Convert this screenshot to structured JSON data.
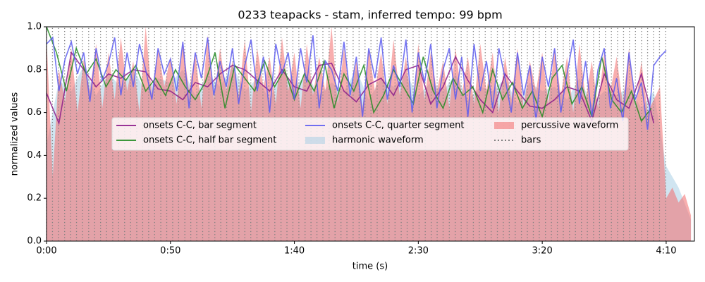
{
  "chart_data": {
    "type": "line",
    "title": "0233 teapacks - stam, inferred tempo: 99 bpm",
    "xlabel": "time (s)",
    "ylabel": "normalized values",
    "xlim": [
      0,
      261.4
    ],
    "ylim": [
      0,
      1
    ],
    "xticks": [
      {
        "value": 0,
        "label": "0:00"
      },
      {
        "value": 50,
        "label": "0:50"
      },
      {
        "value": 100,
        "label": "1:40"
      },
      {
        "value": 150,
        "label": "2:30"
      },
      {
        "value": 200,
        "label": "3:20"
      },
      {
        "value": 250,
        "label": "4:10"
      }
    ],
    "yticks": [
      {
        "value": 0,
        "label": "0.0"
      },
      {
        "value": 0.2,
        "label": "0.2"
      },
      {
        "value": 0.4,
        "label": "0.4"
      },
      {
        "value": 0.6,
        "label": "0.6"
      },
      {
        "value": 0.8,
        "label": "0.8"
      },
      {
        "value": 1,
        "label": "1.0"
      }
    ],
    "series": [
      {
        "name": "onsets C-C, bar segment",
        "type": "line",
        "color": "#8b1a89",
        "x": [
          0,
          5,
          10,
          15,
          20,
          25,
          30,
          35,
          40,
          45,
          50,
          55,
          60,
          65,
          70,
          75,
          80,
          85,
          90,
          95,
          100,
          105,
          110,
          115,
          120,
          125,
          130,
          135,
          140,
          145,
          150,
          155,
          160,
          165,
          170,
          175,
          180,
          185,
          190,
          195,
          200,
          205,
          210,
          215,
          220,
          225,
          230,
          235,
          240,
          245
        ],
        "values": [
          0.69,
          0.55,
          0.88,
          0.8,
          0.72,
          0.78,
          0.76,
          0.8,
          0.79,
          0.71,
          0.7,
          0.66,
          0.74,
          0.72,
          0.78,
          0.82,
          0.8,
          0.75,
          0.7,
          0.8,
          0.72,
          0.7,
          0.82,
          0.83,
          0.7,
          0.65,
          0.73,
          0.76,
          0.68,
          0.8,
          0.82,
          0.64,
          0.72,
          0.86,
          0.75,
          0.66,
          0.6,
          0.78,
          0.7,
          0.63,
          0.62,
          0.66,
          0.72,
          0.7,
          0.56,
          0.78,
          0.66,
          0.62,
          0.78,
          0.55
        ]
      },
      {
        "name": "onsets C-C, half bar segment",
        "type": "line",
        "color": "#228b22",
        "x": [
          0,
          4,
          8,
          12,
          16,
          20,
          24,
          28,
          32,
          36,
          40,
          44,
          48,
          52,
          56,
          60,
          64,
          68,
          72,
          76,
          80,
          84,
          88,
          92,
          96,
          100,
          104,
          108,
          112,
          116,
          120,
          124,
          128,
          132,
          136,
          140,
          144,
          148,
          152,
          156,
          160,
          164,
          168,
          172,
          176,
          180,
          184,
          188,
          192,
          196,
          200,
          204,
          208,
          212,
          216,
          220,
          224,
          228,
          232,
          236,
          240,
          244
        ],
        "values": [
          1.0,
          0.88,
          0.7,
          0.9,
          0.78,
          0.85,
          0.72,
          0.8,
          0.75,
          0.82,
          0.7,
          0.76,
          0.68,
          0.8,
          0.72,
          0.66,
          0.74,
          0.88,
          0.62,
          0.82,
          0.76,
          0.7,
          0.84,
          0.72,
          0.8,
          0.66,
          0.78,
          0.7,
          0.84,
          0.62,
          0.78,
          0.7,
          0.82,
          0.6,
          0.68,
          0.8,
          0.72,
          0.64,
          0.86,
          0.7,
          0.62,
          0.76,
          0.68,
          0.72,
          0.6,
          0.8,
          0.66,
          0.74,
          0.62,
          0.7,
          0.58,
          0.76,
          0.82,
          0.64,
          0.72,
          0.58,
          0.86,
          0.66,
          0.6,
          0.7,
          0.56,
          0.62
        ]
      },
      {
        "name": "onsets C-C, quarter segment",
        "type": "line",
        "color": "#5c5cf0",
        "x": [
          0,
          2.5,
          5,
          7.5,
          10,
          12.5,
          15,
          17.5,
          20,
          22.5,
          25,
          27.5,
          30,
          32.5,
          35,
          37.5,
          40,
          42.5,
          45,
          47.5,
          50,
          52.5,
          55,
          57.5,
          60,
          62.5,
          65,
          67.5,
          70,
          72.5,
          75,
          77.5,
          80,
          82.5,
          85,
          87.5,
          90,
          92.5,
          95,
          97.5,
          100,
          102.5,
          105,
          107.5,
          110,
          112.5,
          115,
          117.5,
          120,
          122.5,
          125,
          127.5,
          130,
          132.5,
          135,
          137.5,
          140,
          142.5,
          145,
          147.5,
          150,
          152.5,
          155,
          157.5,
          160,
          162.5,
          165,
          167.5,
          170,
          172.5,
          175,
          177.5,
          180,
          182.5,
          185,
          187.5,
          190,
          192.5,
          195,
          197.5,
          200,
          202.5,
          205,
          207.5,
          210,
          212.5,
          215,
          217.5,
          220,
          222.5,
          225,
          227.5,
          230,
          232.5,
          235,
          237.5,
          240,
          242.5,
          245,
          247.5,
          250
        ],
        "values": [
          0.92,
          0.95,
          0.7,
          0.85,
          0.93,
          0.78,
          0.88,
          0.65,
          0.9,
          0.75,
          0.83,
          0.95,
          0.68,
          0.88,
          0.72,
          0.92,
          0.8,
          0.66,
          0.9,
          0.78,
          0.85,
          0.7,
          0.93,
          0.62,
          0.88,
          0.76,
          0.95,
          0.68,
          0.84,
          0.72,
          0.9,
          0.64,
          0.82,
          0.94,
          0.7,
          0.86,
          0.6,
          0.92,
          0.78,
          0.88,
          0.66,
          0.9,
          0.74,
          0.96,
          0.62,
          0.84,
          0.8,
          0.7,
          0.93,
          0.68,
          0.86,
          0.58,
          0.9,
          0.76,
          0.95,
          0.66,
          0.82,
          0.72,
          0.94,
          0.6,
          0.88,
          0.74,
          0.92,
          0.62,
          0.8,
          0.9,
          0.66,
          0.86,
          0.58,
          0.92,
          0.7,
          0.84,
          0.62,
          0.9,
          0.76,
          0.6,
          0.88,
          0.68,
          0.82,
          0.56,
          0.86,
          0.72,
          0.9,
          0.6,
          0.78,
          0.94,
          0.64,
          0.84,
          0.58,
          0.8,
          0.9,
          0.62,
          0.76,
          0.56,
          0.88,
          0.66,
          0.74,
          0.52,
          0.82,
          0.86,
          0.89
        ]
      },
      {
        "name": "harmonic waveform",
        "type": "area",
        "color": "#a9cfe6",
        "x": [
          0,
          5,
          10,
          15,
          20,
          25,
          30,
          35,
          40,
          45,
          50,
          55,
          60,
          65,
          70,
          75,
          80,
          85,
          90,
          95,
          100,
          105,
          110,
          115,
          120,
          125,
          130,
          135,
          140,
          145,
          150,
          155,
          160,
          165,
          170,
          175,
          180,
          185,
          190,
          195,
          200,
          205,
          210,
          215,
          220,
          225,
          230,
          235,
          240,
          245,
          250,
          255,
          260
        ],
        "values": [
          0.45,
          0.75,
          0.7,
          0.82,
          0.68,
          0.78,
          0.72,
          0.8,
          0.7,
          0.76,
          0.74,
          0.8,
          0.68,
          0.78,
          0.72,
          0.82,
          0.7,
          0.76,
          0.66,
          0.8,
          0.72,
          0.78,
          0.68,
          0.74,
          0.7,
          0.8,
          0.66,
          0.76,
          0.72,
          0.78,
          0.68,
          0.74,
          0.7,
          0.78,
          0.66,
          0.72,
          0.7,
          0.76,
          0.64,
          0.74,
          0.7,
          0.72,
          0.66,
          0.76,
          0.64,
          0.7,
          0.68,
          0.72,
          0.62,
          0.7,
          0.35,
          0.25,
          0.1
        ]
      },
      {
        "name": "percussive waveform",
        "type": "area",
        "color": "#f26b6b",
        "x": [
          0,
          2.5,
          5,
          7.5,
          10,
          12.5,
          15,
          17.5,
          20,
          22.5,
          25,
          27.5,
          30,
          32.5,
          35,
          37.5,
          40,
          42.5,
          45,
          47.5,
          50,
          52.5,
          55,
          57.5,
          60,
          62.5,
          65,
          67.5,
          70,
          72.5,
          75,
          77.5,
          80,
          82.5,
          85,
          87.5,
          90,
          92.5,
          95,
          97.5,
          100,
          102.5,
          105,
          107.5,
          110,
          112.5,
          115,
          117.5,
          120,
          122.5,
          125,
          127.5,
          130,
          132.5,
          135,
          137.5,
          140,
          142.5,
          145,
          147.5,
          150,
          152.5,
          155,
          157.5,
          160,
          162.5,
          165,
          167.5,
          170,
          172.5,
          175,
          177.5,
          180,
          182.5,
          185,
          187.5,
          190,
          192.5,
          195,
          197.5,
          200,
          202.5,
          205,
          207.5,
          210,
          212.5,
          215,
          217.5,
          220,
          222.5,
          225,
          227.5,
          230,
          232.5,
          235,
          237.5,
          240,
          242.5,
          245,
          247.5,
          250,
          252.5,
          255,
          257.5,
          260
        ],
        "values": [
          0.95,
          0.3,
          0.8,
          0.65,
          0.9,
          0.6,
          0.85,
          0.7,
          0.92,
          0.62,
          0.88,
          0.66,
          0.95,
          0.7,
          0.84,
          0.6,
          1.0,
          0.68,
          0.9,
          0.72,
          0.86,
          0.64,
          0.93,
          0.7,
          0.88,
          0.62,
          0.96,
          0.66,
          0.9,
          0.7,
          0.84,
          0.68,
          0.94,
          0.6,
          0.9,
          0.72,
          0.86,
          0.64,
          0.95,
          0.7,
          0.88,
          0.62,
          0.92,
          0.68,
          0.86,
          0.7,
          1.0,
          0.64,
          0.9,
          0.66,
          0.84,
          0.62,
          0.9,
          0.7,
          0.88,
          0.64,
          0.94,
          0.68,
          0.86,
          0.6,
          0.92,
          0.66,
          0.88,
          0.7,
          0.84,
          0.62,
          0.9,
          0.68,
          0.86,
          0.64,
          0.92,
          0.7,
          0.88,
          0.6,
          0.86,
          0.66,
          0.9,
          0.62,
          0.84,
          0.7,
          0.88,
          0.64,
          0.9,
          0.68,
          0.86,
          0.6,
          0.92,
          0.66,
          0.84,
          0.62,
          0.88,
          0.7,
          0.86,
          0.64,
          0.9,
          0.62,
          0.84,
          0.6,
          0.66,
          0.72,
          0.2,
          0.25,
          0.18,
          0.22,
          0.12
        ]
      },
      {
        "name": "bars",
        "type": "vlines",
        "color": "#808080",
        "x": [
          0,
          2.4,
          4.8,
          7.3,
          9.7,
          12.1,
          14.5,
          17.0,
          19.4,
          21.8,
          24.2,
          26.7,
          29.1,
          31.5,
          33.9,
          36.4,
          38.8,
          41.2,
          43.6,
          46.1,
          48.5,
          50.9,
          53.3,
          55.8,
          58.2,
          60.6,
          63.0,
          65.5,
          67.9,
          70.3,
          72.7,
          75.2,
          77.6,
          80.0,
          82.4,
          84.9,
          87.3,
          89.7,
          92.1,
          94.6,
          97.0,
          99.4,
          101.8,
          104.3,
          106.7,
          109.1,
          111.5,
          114.0,
          116.4,
          118.8,
          121.2,
          123.7,
          126.1,
          128.5,
          130.9,
          133.4,
          135.8,
          138.2,
          140.6,
          143.1,
          145.5,
          147.9,
          150.3,
          152.8,
          155.2,
          157.6,
          160.0,
          162.5,
          164.9,
          167.3,
          169.7,
          172.2,
          174.6,
          177.0,
          179.4,
          181.9,
          184.3,
          186.7,
          189.1,
          191.6,
          194.0,
          196.4,
          198.8,
          201.3,
          203.7,
          206.1,
          208.5,
          211.0,
          213.4,
          215.8,
          218.2,
          220.7,
          223.1,
          225.5,
          227.9,
          230.4,
          232.8,
          235.2,
          237.6,
          240.1,
          242.5,
          244.9,
          247.3,
          249.8
        ]
      }
    ]
  }
}
